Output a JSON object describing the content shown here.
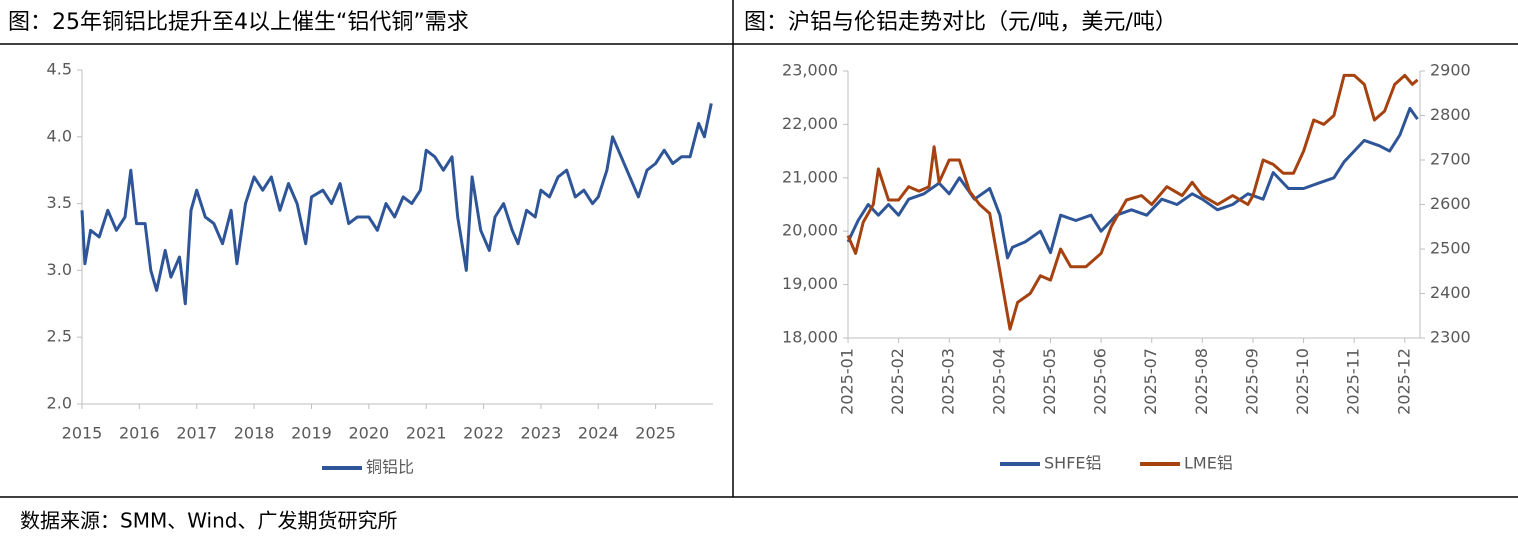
{
  "chart_data": [
    {
      "type": "line",
      "title": "图：25年铜铝比提升至4以上催生“铝代铜”需求",
      "xlim": [
        2015,
        2026
      ],
      "xticks": [
        2015,
        2016,
        2017,
        2018,
        2019,
        2020,
        2021,
        2022,
        2023,
        2024,
        2025
      ],
      "ylim": [
        2.0,
        4.5
      ],
      "yticks": [
        {
          "value": 2.0,
          "label": "2.0"
        },
        2.5,
        {
          "value": 3.0,
          "label": "3.0"
        },
        3.5,
        {
          "value": 4.0,
          "label": "4.0"
        },
        4.5
      ],
      "x": [
        2015.0,
        2015.05,
        2015.15,
        2015.3,
        2015.45,
        2015.6,
        2015.75,
        2015.85,
        2015.95,
        2016.1,
        2016.2,
        2016.3,
        2016.45,
        2016.55,
        2016.7,
        2016.8,
        2016.9,
        2017.0,
        2017.15,
        2017.3,
        2017.45,
        2017.6,
        2017.7,
        2017.85,
        2018.0,
        2018.15,
        2018.3,
        2018.45,
        2018.6,
        2018.75,
        2018.9,
        2019.0,
        2019.2,
        2019.35,
        2019.5,
        2019.65,
        2019.8,
        2020.0,
        2020.15,
        2020.3,
        2020.45,
        2020.6,
        2020.75,
        2020.9,
        2021.0,
        2021.15,
        2021.3,
        2021.45,
        2021.55,
        2021.7,
        2021.8,
        2021.95,
        2022.1,
        2022.2,
        2022.35,
        2022.5,
        2022.6,
        2022.75,
        2022.9,
        2023.0,
        2023.15,
        2023.3,
        2023.45,
        2023.6,
        2023.75,
        2023.9,
        2024.0,
        2024.15,
        2024.25,
        2024.4,
        2024.55,
        2024.7,
        2024.85,
        2025.0,
        2025.15,
        2025.3,
        2025.45,
        2025.6,
        2025.75,
        2025.85,
        2025.97
      ],
      "series": [
        {
          "name": "铜铝比",
          "color": "#2e5597",
          "values": [
            3.45,
            3.05,
            3.3,
            3.25,
            3.45,
            3.3,
            3.4,
            3.75,
            3.35,
            3.35,
            3.0,
            2.85,
            3.15,
            2.95,
            3.1,
            2.75,
            3.45,
            3.6,
            3.4,
            3.35,
            3.2,
            3.45,
            3.05,
            3.5,
            3.7,
            3.6,
            3.7,
            3.45,
            3.65,
            3.5,
            3.2,
            3.55,
            3.6,
            3.5,
            3.65,
            3.35,
            3.4,
            3.4,
            3.3,
            3.5,
            3.4,
            3.55,
            3.5,
            3.6,
            3.9,
            3.85,
            3.75,
            3.85,
            3.4,
            3.0,
            3.7,
            3.3,
            3.15,
            3.4,
            3.5,
            3.3,
            3.2,
            3.45,
            3.4,
            3.6,
            3.55,
            3.7,
            3.75,
            3.55,
            3.6,
            3.5,
            3.55,
            3.75,
            4.0,
            3.85,
            3.7,
            3.55,
            3.75,
            3.8,
            3.9,
            3.8,
            3.85,
            3.85,
            4.1,
            4.0,
            4.25
          ]
        }
      ]
    },
    {
      "type": "line",
      "title": "图：沪铝与伦铝走势对比（元/吨，美元/吨）",
      "xlim": [
        1,
        12.3
      ],
      "xticks": [
        {
          "value": 1,
          "label": "2025-01"
        },
        {
          "value": 2,
          "label": "2025-02"
        },
        {
          "value": 3,
          "label": "2025-03"
        },
        {
          "value": 4,
          "label": "2025-04"
        },
        {
          "value": 5,
          "label": "2025-05"
        },
        {
          "value": 6,
          "label": "2025-06"
        },
        {
          "value": 7,
          "label": "2025-07"
        },
        {
          "value": 8,
          "label": "2025-08"
        },
        {
          "value": 9,
          "label": "2025-09"
        },
        {
          "value": 10,
          "label": "2025-10"
        },
        {
          "value": 11,
          "label": "2025-11"
        },
        {
          "value": 12,
          "label": "2025-12"
        }
      ],
      "ylim": [
        18000,
        23000
      ],
      "yticks": [
        {
          "value": 18000,
          "label": "18,000"
        },
        {
          "value": 19000,
          "label": "19,000"
        },
        {
          "value": 20000,
          "label": "20,000"
        },
        {
          "value": 21000,
          "label": "21,000"
        },
        {
          "value": 22000,
          "label": "22,000"
        },
        {
          "value": 23000,
          "label": "23,000"
        }
      ],
      "y2lim": [
        2300,
        2900
      ],
      "y2ticks": [
        2300,
        2400,
        2500,
        2600,
        2700,
        2800,
        2900
      ],
      "series": [
        {
          "name": "SHFE铝",
          "color": "#2e5597",
          "x": [
            1.0,
            1.2,
            1.4,
            1.6,
            1.8,
            2.0,
            2.2,
            2.5,
            2.8,
            3.0,
            3.2,
            3.5,
            3.8,
            4.0,
            4.15,
            4.25,
            4.5,
            4.8,
            5.0,
            5.2,
            5.5,
            5.8,
            6.0,
            6.3,
            6.6,
            6.9,
            7.2,
            7.5,
            7.8,
            8.0,
            8.3,
            8.6,
            8.9,
            9.2,
            9.4,
            9.7,
            10.0,
            10.3,
            10.6,
            10.8,
            11.0,
            11.2,
            11.5,
            11.7,
            11.9,
            12.1,
            12.25
          ],
          "values": [
            19800,
            20200,
            20500,
            20300,
            20500,
            20300,
            20600,
            20700,
            20900,
            20700,
            21000,
            20600,
            20800,
            20300,
            19500,
            19700,
            19800,
            20000,
            19600,
            20300,
            20200,
            20300,
            20000,
            20300,
            20400,
            20300,
            20600,
            20500,
            20700,
            20600,
            20400,
            20500,
            20700,
            20600,
            21100,
            20800,
            20800,
            20900,
            21000,
            21300,
            21500,
            21700,
            21600,
            21500,
            21800,
            22300,
            22100
          ]
        },
        {
          "name": "LME铝",
          "color": "#a5420f",
          "axis": "y2",
          "x": [
            1.0,
            1.15,
            1.3,
            1.5,
            1.6,
            1.8,
            2.0,
            2.2,
            2.4,
            2.6,
            2.7,
            2.8,
            3.0,
            3.2,
            3.4,
            3.6,
            3.8,
            4.0,
            4.2,
            4.35,
            4.6,
            4.8,
            5.0,
            5.2,
            5.4,
            5.7,
            6.0,
            6.2,
            6.5,
            6.8,
            7.0,
            7.3,
            7.6,
            7.8,
            8.0,
            8.3,
            8.6,
            8.9,
            9.0,
            9.2,
            9.4,
            9.6,
            9.8,
            10.0,
            10.2,
            10.4,
            10.6,
            10.8,
            11.0,
            11.2,
            11.4,
            11.6,
            11.8,
            12.0,
            12.15,
            12.25
          ],
          "values": [
            2530,
            2490,
            2560,
            2600,
            2680,
            2610,
            2610,
            2640,
            2630,
            2640,
            2730,
            2650,
            2700,
            2700,
            2630,
            2600,
            2580,
            2450,
            2320,
            2380,
            2400,
            2440,
            2430,
            2500,
            2460,
            2460,
            2490,
            2550,
            2610,
            2620,
            2600,
            2640,
            2620,
            2650,
            2620,
            2600,
            2620,
            2600,
            2620,
            2700,
            2690,
            2670,
            2670,
            2720,
            2790,
            2780,
            2800,
            2890,
            2890,
            2870,
            2790,
            2810,
            2870,
            2890,
            2870,
            2880
          ]
        }
      ]
    }
  ],
  "source": "数据来源：SMM、Wind、广发期货研究所"
}
